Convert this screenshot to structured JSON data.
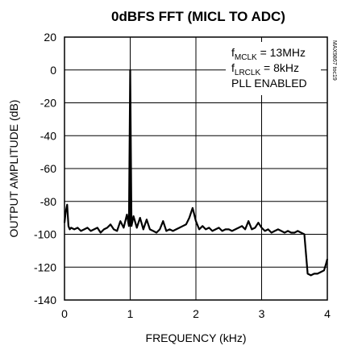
{
  "chart_data": {
    "type": "line",
    "title": "0dBFS FFT (MICL TO ADC)",
    "xlabel": "FREQUENCY (kHz)",
    "ylabel": "OUTPUT AMPLITUDE (dB)",
    "xlim": [
      0,
      4
    ],
    "ylim": [
      -140,
      20
    ],
    "x_ticks": [
      0,
      1,
      2,
      3,
      4
    ],
    "y_ticks": [
      20,
      0,
      -20,
      -40,
      -60,
      -80,
      -100,
      -120,
      -140
    ],
    "grid": true,
    "figure_id": "MAX9867 toc19",
    "annotations": [
      {
        "text": "f",
        "sub": "MCLK",
        "rest": " = 13MHz"
      },
      {
        "text": "f",
        "sub": "LRCLK",
        "rest": " = 8kHz"
      },
      {
        "text": "PLL ENABLED",
        "sub": "",
        "rest": ""
      }
    ],
    "series": [
      {
        "x": [
          0.0,
          0.02,
          0.04,
          0.06,
          0.08,
          0.1,
          0.15,
          0.2,
          0.25,
          0.3,
          0.35,
          0.4,
          0.45,
          0.5,
          0.55,
          0.6,
          0.65,
          0.7,
          0.75,
          0.8,
          0.85,
          0.9,
          0.95,
          0.98,
          1.0,
          1.02,
          1.05,
          1.1,
          1.15,
          1.2,
          1.25,
          1.3,
          1.35,
          1.4,
          1.45,
          1.5,
          1.55,
          1.6,
          1.65,
          1.7,
          1.75,
          1.8,
          1.85,
          1.9,
          1.95,
          2.0,
          2.05,
          2.1,
          2.15,
          2.2,
          2.25,
          2.3,
          2.35,
          2.4,
          2.45,
          2.5,
          2.55,
          2.6,
          2.65,
          2.7,
          2.75,
          2.8,
          2.85,
          2.9,
          2.95,
          3.0,
          3.05,
          3.1,
          3.15,
          3.2,
          3.25,
          3.3,
          3.35,
          3.4,
          3.45,
          3.5,
          3.55,
          3.6,
          3.65,
          3.7,
          3.75,
          3.8,
          3.85,
          3.9,
          3.95,
          3.98,
          4.0
        ],
        "y": [
          -93,
          -86,
          -82,
          -95,
          -97,
          -96,
          -97,
          -96,
          -98,
          -97,
          -96,
          -98,
          -97,
          -96,
          -99,
          -97,
          -96,
          -94,
          -97,
          -98,
          -92,
          -96,
          -88,
          -95,
          0,
          -95,
          -89,
          -96,
          -90,
          -97,
          -91,
          -97,
          -98,
          -99,
          -97,
          -92,
          -98,
          -97,
          -98,
          -97,
          -96,
          -95,
          -94,
          -90,
          -84,
          -92,
          -97,
          -95,
          -97,
          -96,
          -98,
          -97,
          -96,
          -98,
          -97,
          -97,
          -98,
          -97,
          -96,
          -95,
          -97,
          -92,
          -97,
          -96,
          -93,
          -96,
          -98,
          -97,
          -99,
          -98,
          -97,
          -98,
          -99,
          -98,
          -99,
          -99,
          -98,
          -99,
          -100,
          -124,
          -125,
          -124,
          -124,
          -123,
          -122,
          -118,
          -115
        ]
      }
    ]
  }
}
